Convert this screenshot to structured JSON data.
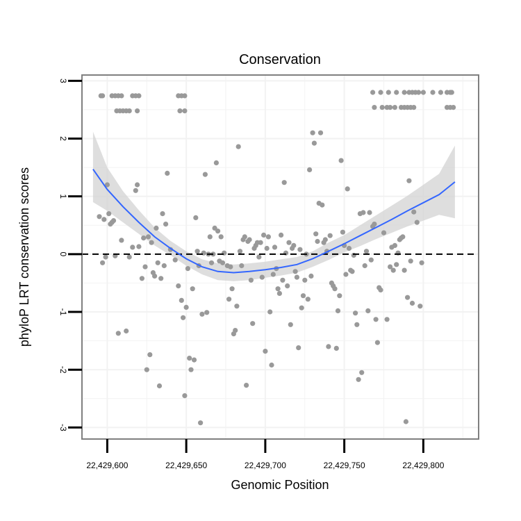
{
  "chart_data": {
    "type": "scatter",
    "title": "Conservation",
    "xlabel": "Genomic Position",
    "ylabel": "phyloP LRT conservation scores",
    "xlim": [
      22429584,
      22429835
    ],
    "ylim": [
      -3.2,
      3.1
    ],
    "x_ticks": [
      22429600,
      22429650,
      22429700,
      22429750,
      22429800
    ],
    "x_tick_labels": [
      "22,429,600",
      "22,429,650",
      "22,429,700",
      "22,429,750",
      "22,429,800"
    ],
    "y_ticks": [
      3,
      2,
      1,
      0,
      -1,
      -2,
      -3
    ],
    "y_tick_labels": [
      "3",
      "2",
      "1",
      "0",
      "-1",
      "-2",
      "-3"
    ],
    "reference_line": {
      "y": 0,
      "style": "dashed"
    },
    "colors": {
      "points": "#999999",
      "smooth_line": "#3366ff",
      "ribbon": "#d3d3d3",
      "panel_border": "#7f7f7f",
      "grid": "#f2f2f2"
    },
    "series": [
      {
        "name": "phyloP scores",
        "kind": "points",
        "points": [
          [
            22429596,
            2.74
          ],
          [
            22429597,
            2.74
          ],
          [
            22429603,
            2.74
          ],
          [
            22429605,
            2.74
          ],
          [
            22429607,
            2.74
          ],
          [
            22429609,
            2.74
          ],
          [
            22429616,
            2.74
          ],
          [
            22429618,
            2.74
          ],
          [
            22429620,
            2.74
          ],
          [
            22429645,
            2.74
          ],
          [
            22429647,
            2.74
          ],
          [
            22429649,
            2.74
          ],
          [
            22429606,
            2.48
          ],
          [
            22429608,
            2.48
          ],
          [
            22429610,
            2.48
          ],
          [
            22429612,
            2.48
          ],
          [
            22429614,
            2.48
          ],
          [
            22429619,
            2.48
          ],
          [
            22429646,
            2.48
          ],
          [
            22429649,
            2.48
          ],
          [
            22429768,
            2.8
          ],
          [
            22429773,
            2.8
          ],
          [
            22429778,
            2.8
          ],
          [
            22429783,
            2.8
          ],
          [
            22429788,
            2.8
          ],
          [
            22429791,
            2.8
          ],
          [
            22429793,
            2.8
          ],
          [
            22429795,
            2.8
          ],
          [
            22429797,
            2.8
          ],
          [
            22429800,
            2.8
          ],
          [
            22429806,
            2.8
          ],
          [
            22429811,
            2.8
          ],
          [
            22429815,
            2.8
          ],
          [
            22429817,
            2.8
          ],
          [
            22429818,
            2.8
          ],
          [
            22429769,
            2.54
          ],
          [
            22429774,
            2.54
          ],
          [
            22429777,
            2.54
          ],
          [
            22429779,
            2.54
          ],
          [
            22429782,
            2.54
          ],
          [
            22429786,
            2.54
          ],
          [
            22429788,
            2.54
          ],
          [
            22429790,
            2.54
          ],
          [
            22429792,
            2.54
          ],
          [
            22429794,
            2.54
          ],
          [
            22429815,
            2.54
          ],
          [
            22429817,
            2.54
          ],
          [
            22429819,
            2.54
          ],
          [
            22429595,
            0.65
          ],
          [
            22429597,
            -0.15
          ],
          [
            22429598,
            0.6
          ],
          [
            22429599,
            -0.05
          ],
          [
            22429600,
            1.2
          ],
          [
            22429601,
            0.7
          ],
          [
            22429602,
            0.52
          ],
          [
            22429603,
            0.55
          ],
          [
            22429604,
            0.58
          ],
          [
            22429605,
            -0.03
          ],
          [
            22429607,
            -1.37
          ],
          [
            22429609,
            0.24
          ],
          [
            22429612,
            -1.33
          ],
          [
            22429614,
            -0.05
          ],
          [
            22429616,
            0.12
          ],
          [
            22429618,
            1.1
          ],
          [
            22429619,
            1.2
          ],
          [
            22429620,
            0.13
          ],
          [
            22429622,
            -0.42
          ],
          [
            22429623,
            0.28
          ],
          [
            22429624,
            -0.22
          ],
          [
            22429625,
            -2.0
          ],
          [
            22429626,
            0.3
          ],
          [
            22429627,
            -1.74
          ],
          [
            22429628,
            0.2
          ],
          [
            22429629,
            -0.32
          ],
          [
            22429630,
            -0.38
          ],
          [
            22429631,
            0.45
          ],
          [
            22429632,
            -0.15
          ],
          [
            22429633,
            -2.28
          ],
          [
            22429634,
            -0.42
          ],
          [
            22429635,
            0.7
          ],
          [
            22429636,
            -0.2
          ],
          [
            22429637,
            0.52
          ],
          [
            22429638,
            1.4
          ],
          [
            22429640,
            0.08
          ],
          [
            22429643,
            -0.1
          ],
          [
            22429645,
            -0.55
          ],
          [
            22429647,
            -0.8
          ],
          [
            22429648,
            -1.1
          ],
          [
            22429649,
            -2.45
          ],
          [
            22429650,
            -0.92
          ],
          [
            22429651,
            -0.25
          ],
          [
            22429652,
            -1.8
          ],
          [
            22429653,
            -2.0
          ],
          [
            22429654,
            -0.6
          ],
          [
            22429655,
            -1.83
          ],
          [
            22429656,
            0.63
          ],
          [
            22429657,
            0.05
          ],
          [
            22429658,
            -0.2
          ],
          [
            22429659,
            -2.92
          ],
          [
            22429660,
            -1.04
          ],
          [
            22429661,
            0.02
          ],
          [
            22429662,
            1.38
          ],
          [
            22429663,
            -1.01
          ],
          [
            22429664,
            0.0
          ],
          [
            22429665,
            0.3
          ],
          [
            22429666,
            -0.15
          ],
          [
            22429667,
            0.0
          ],
          [
            22429668,
            0.45
          ],
          [
            22429669,
            1.58
          ],
          [
            22429670,
            0.4
          ],
          [
            22429671,
            -0.12
          ],
          [
            22429672,
            0.3
          ],
          [
            22429673,
            -0.15
          ],
          [
            22429674,
            0.02
          ],
          [
            22429676,
            -0.2
          ],
          [
            22429677,
            -0.78
          ],
          [
            22429678,
            -0.22
          ],
          [
            22429679,
            -0.6
          ],
          [
            22429680,
            -1.38
          ],
          [
            22429681,
            -1.32
          ],
          [
            22429682,
            -0.9
          ],
          [
            22429683,
            1.86
          ],
          [
            22429684,
            0.05
          ],
          [
            22429685,
            -0.2
          ],
          [
            22429686,
            0.25
          ],
          [
            22429687,
            0.3
          ],
          [
            22429688,
            -2.27
          ],
          [
            22429689,
            0.22
          ],
          [
            22429690,
            0.25
          ],
          [
            22429691,
            -0.45
          ],
          [
            22429692,
            -1.2
          ],
          [
            22429693,
            0.1
          ],
          [
            22429694,
            0.15
          ],
          [
            22429695,
            0.2
          ],
          [
            22429696,
            -0.05
          ],
          [
            22429697,
            0.2
          ],
          [
            22429698,
            -0.4
          ],
          [
            22429699,
            0.33
          ],
          [
            22429700,
            -1.68
          ],
          [
            22429701,
            0.1
          ],
          [
            22429702,
            0.3
          ],
          [
            22429703,
            -1.0
          ],
          [
            22429704,
            -1.92
          ],
          [
            22429705,
            -0.35
          ],
          [
            22429706,
            0.12
          ],
          [
            22429707,
            -0.25
          ],
          [
            22429708,
            -0.6
          ],
          [
            22429709,
            -0.68
          ],
          [
            22429710,
            0.33
          ],
          [
            22429711,
            -0.45
          ],
          [
            22429712,
            1.24
          ],
          [
            22429713,
            0.02
          ],
          [
            22429714,
            -0.55
          ],
          [
            22429715,
            0.2
          ],
          [
            22429716,
            -1.22
          ],
          [
            22429717,
            0.1
          ],
          [
            22429718,
            0.15
          ],
          [
            22429719,
            -0.3
          ],
          [
            22429720,
            -0.4
          ],
          [
            22429721,
            -1.62
          ],
          [
            22429722,
            0.08
          ],
          [
            22429723,
            -0.93
          ],
          [
            22429724,
            -0.72
          ],
          [
            22429725,
            -0.45
          ],
          [
            22429726,
            0.0
          ],
          [
            22429727,
            -0.78
          ],
          [
            22429728,
            1.46
          ],
          [
            22429729,
            -0.38
          ],
          [
            22429730,
            2.1
          ],
          [
            22429731,
            1.92
          ],
          [
            22429732,
            0.35
          ],
          [
            22429733,
            0.22
          ],
          [
            22429734,
            0.88
          ],
          [
            22429735,
            2.1
          ],
          [
            22429736,
            0.85
          ],
          [
            22429737,
            0.2
          ],
          [
            22429738,
            0.25
          ],
          [
            22429739,
            0.05
          ],
          [
            22429740,
            -1.6
          ],
          [
            22429741,
            0.32
          ],
          [
            22429742,
            -0.5
          ],
          [
            22429743,
            -0.55
          ],
          [
            22429744,
            -0.6
          ],
          [
            22429745,
            -1.63
          ],
          [
            22429746,
            -0.98
          ],
          [
            22429747,
            -0.72
          ],
          [
            22429748,
            1.62
          ],
          [
            22429749,
            0.38
          ],
          [
            22429750,
            0.15
          ],
          [
            22429751,
            -0.35
          ],
          [
            22429752,
            1.13
          ],
          [
            22429753,
            0.1
          ],
          [
            22429754,
            -0.28
          ],
          [
            22429755,
            -0.3
          ],
          [
            22429756,
            -0.02
          ],
          [
            22429757,
            -1.02
          ],
          [
            22429758,
            -1.22
          ],
          [
            22429759,
            -2.17
          ],
          [
            22429760,
            0.7
          ],
          [
            22429761,
            -2.05
          ],
          [
            22429762,
            0.72
          ],
          [
            22429763,
            -0.2
          ],
          [
            22429764,
            0.05
          ],
          [
            22429765,
            -0.98
          ],
          [
            22429766,
            0.72
          ],
          [
            22429767,
            -0.1
          ],
          [
            22429768,
            0.48
          ],
          [
            22429769,
            0.52
          ],
          [
            22429770,
            -1.13
          ],
          [
            22429771,
            -1.53
          ],
          [
            22429772,
            -0.58
          ],
          [
            22429773,
            -0.62
          ],
          [
            22429775,
            0.37
          ],
          [
            22429777,
            -1.13
          ],
          [
            22429779,
            -0.22
          ],
          [
            22429780,
            0.12
          ],
          [
            22429781,
            -0.28
          ],
          [
            22429782,
            0.15
          ],
          [
            22429783,
            -0.18
          ],
          [
            22429784,
            0.02
          ],
          [
            22429785,
            0.25
          ],
          [
            22429786,
            0.28
          ],
          [
            22429787,
            0.3
          ],
          [
            22429788,
            -0.28
          ],
          [
            22429789,
            -2.9
          ],
          [
            22429790,
            -0.75
          ],
          [
            22429791,
            1.27
          ],
          [
            22429792,
            -0.12
          ],
          [
            22429793,
            -0.85
          ],
          [
            22429794,
            0.73
          ],
          [
            22429796,
            0.55
          ],
          [
            22429798,
            -0.9
          ],
          [
            22429799,
            -0.15
          ]
        ]
      },
      {
        "name": "loess fit",
        "kind": "line",
        "x": [
          22429591,
          22429600,
          22429610,
          22429620,
          22429630,
          22429640,
          22429650,
          22429660,
          22429670,
          22429680,
          22429690,
          22429700,
          22429710,
          22429720,
          22429730,
          22429740,
          22429750,
          22429760,
          22429770,
          22429780,
          22429790,
          22429800,
          22429810,
          22429820
        ],
        "y": [
          1.47,
          1.12,
          0.82,
          0.55,
          0.3,
          0.1,
          -0.08,
          -0.22,
          -0.3,
          -0.32,
          -0.3,
          -0.27,
          -0.23,
          -0.18,
          -0.08,
          0.05,
          0.18,
          0.32,
          0.46,
          0.6,
          0.75,
          0.89,
          1.03,
          1.25
        ],
        "ci_lower": [
          0.9,
          0.75,
          0.55,
          0.35,
          0.15,
          -0.02,
          -0.2,
          -0.35,
          -0.45,
          -0.47,
          -0.45,
          -0.41,
          -0.37,
          -0.32,
          -0.22,
          -0.1,
          0.03,
          0.14,
          0.26,
          0.37,
          0.48,
          0.58,
          0.68,
          0.62
        ],
        "ci_upper": [
          2.12,
          1.5,
          1.09,
          0.76,
          0.46,
          0.23,
          0.05,
          -0.09,
          -0.16,
          -0.18,
          -0.16,
          -0.13,
          -0.09,
          -0.05,
          0.05,
          0.2,
          0.33,
          0.5,
          0.67,
          0.84,
          1.01,
          1.2,
          1.39,
          1.88
        ]
      }
    ]
  }
}
